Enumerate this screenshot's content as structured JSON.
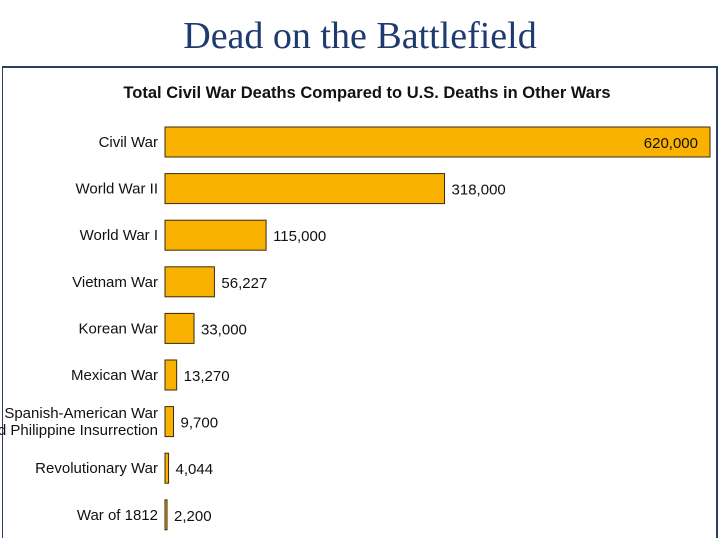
{
  "slide": {
    "title": "Dead on the Battlefield"
  },
  "colors": {
    "bar_fill": "#F9B200",
    "bar_stroke": "#3a2a10",
    "title": "#1f3a6e",
    "frame": "#2b3f66"
  },
  "chart_data": {
    "type": "bar",
    "orientation": "horizontal",
    "title": "Total Civil War Deaths Compared to U.S. Deaths in Other Wars",
    "categories": [
      [
        "Civil War"
      ],
      [
        "World War II"
      ],
      [
        "World War I"
      ],
      [
        "Vietnam War"
      ],
      [
        "Korean War"
      ],
      [
        "Mexican War"
      ],
      [
        "Spanish-American War",
        "and Philippine Insurrection"
      ],
      [
        "Revolutionary War"
      ],
      [
        "War of 1812"
      ]
    ],
    "values": [
      620000,
      318000,
      115000,
      56227,
      33000,
      13270,
      9700,
      4044,
      2200
    ],
    "value_labels": [
      "620,000",
      "318,000",
      "115,000",
      "56,227",
      "33,000",
      "13,270",
      "9,700",
      "4,044",
      "2,200"
    ],
    "xlim": [
      0,
      620000
    ],
    "xlabel": "",
    "ylabel": "",
    "grid": false
  }
}
